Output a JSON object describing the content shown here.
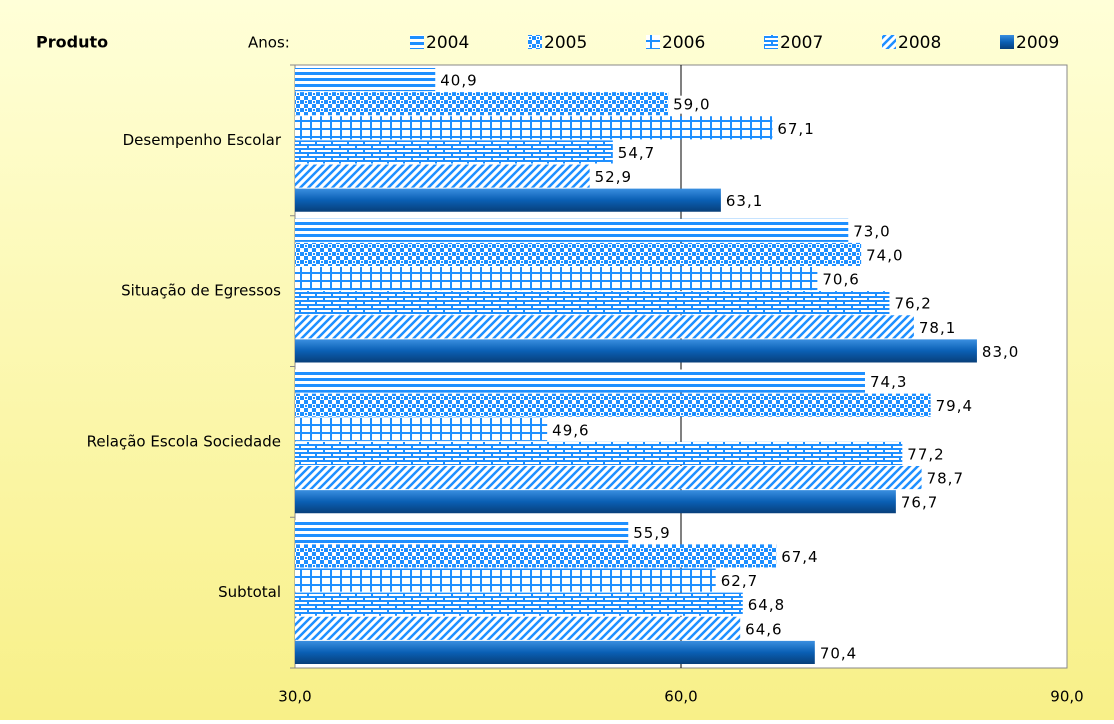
{
  "chart_data": {
    "type": "hbar",
    "y_title": "Produto",
    "legend_title": "Anos:",
    "categories": [
      "Desempenho Escolar",
      "Situação de Egressos",
      "Relação Escola Sociedade",
      "Subtotal"
    ],
    "series": [
      {
        "name": "2004",
        "color": "#1e8fff",
        "values": [
          40.9,
          73.0,
          74.3,
          55.9
        ],
        "value_labels": [
          "40,9",
          "73,0",
          "74,3",
          "55,9"
        ]
      },
      {
        "name": "2005",
        "color": "#1e8fff",
        "values": [
          59.0,
          74.0,
          79.4,
          67.4
        ],
        "value_labels": [
          "59,0",
          "74,0",
          "79,4",
          "67,4"
        ]
      },
      {
        "name": "2006",
        "color": "#1e8fff",
        "values": [
          67.1,
          70.6,
          49.6,
          62.7
        ],
        "value_labels": [
          "67,1",
          "70,6",
          "49,6",
          "62,7"
        ]
      },
      {
        "name": "2007",
        "color": "#1e8fff",
        "values": [
          54.7,
          76.2,
          77.2,
          64.8
        ],
        "value_labels": [
          "54,7",
          "76,2",
          "77,2",
          "64,8"
        ]
      },
      {
        "name": "2008",
        "color": "#1e8fff",
        "values": [
          52.9,
          78.1,
          78.7,
          64.6
        ],
        "value_labels": [
          "52,9",
          "78,1",
          "78,7",
          "64,6"
        ]
      },
      {
        "name": "2009",
        "color": "#0a5fb4",
        "values": [
          63.1,
          83.0,
          76.7,
          70.4
        ],
        "value_labels": [
          "63,1",
          "83,0",
          "76,7",
          "70,4"
        ]
      }
    ],
    "xlim": [
      30,
      90
    ],
    "xticks": [
      {
        "value": 30,
        "label": "30,0"
      },
      {
        "value": 60,
        "label": "60,0"
      },
      {
        "value": 90,
        "label": "90,0"
      }
    ],
    "grid": true
  }
}
